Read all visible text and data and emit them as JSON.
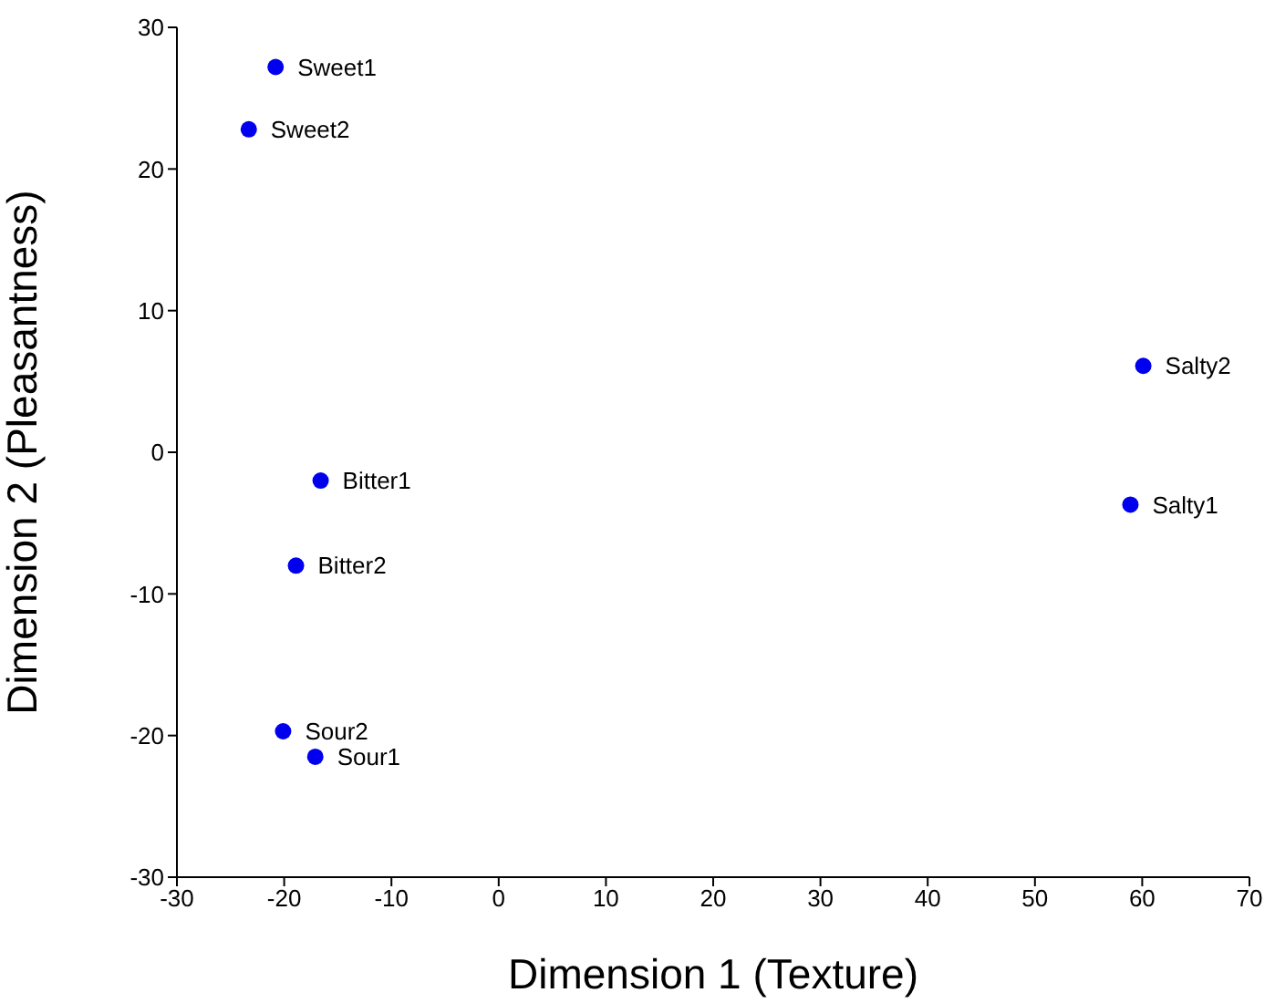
{
  "chart_data": {
    "type": "scatter",
    "xlabel": "Dimension 1 (Texture)",
    "ylabel": "Dimension 2 (Pleasantness)",
    "x": [
      -20.8,
      -23.3,
      -16.6,
      -18.9,
      -20.1,
      -17.1,
      60.1,
      58.9
    ],
    "series": [
      {
        "color": "#0000ee",
        "values": [
          27.2,
          22.8,
          -2.0,
          -8.0,
          -19.7,
          -21.5,
          6.1,
          -3.7
        ]
      }
    ],
    "annotations": [
      {
        "text": "Sweet1",
        "x": -20.8,
        "y": 27.2
      },
      {
        "text": "Sweet2",
        "x": -23.3,
        "y": 22.8
      },
      {
        "text": "Bitter1",
        "x": -16.6,
        "y": -2.0
      },
      {
        "text": "Bitter2",
        "x": -18.9,
        "y": -8.0
      },
      {
        "text": "Sour2",
        "x": -20.1,
        "y": -19.7
      },
      {
        "text": "Sour1",
        "x": -17.1,
        "y": -21.5
      },
      {
        "text": "Salty2",
        "x": 60.1,
        "y": 6.1
      },
      {
        "text": "Salty1",
        "x": 58.9,
        "y": -3.7
      }
    ],
    "xlim": [
      -30,
      70
    ],
    "xticks": [
      -30,
      -20,
      -10,
      0,
      10,
      20,
      30,
      40,
      50,
      60,
      70
    ],
    "ylim": [
      -30,
      30
    ],
    "yticks": [
      -30,
      -20,
      -10,
      0,
      10,
      20,
      30
    ],
    "marker": "circle",
    "grid": false,
    "legend": false
  }
}
